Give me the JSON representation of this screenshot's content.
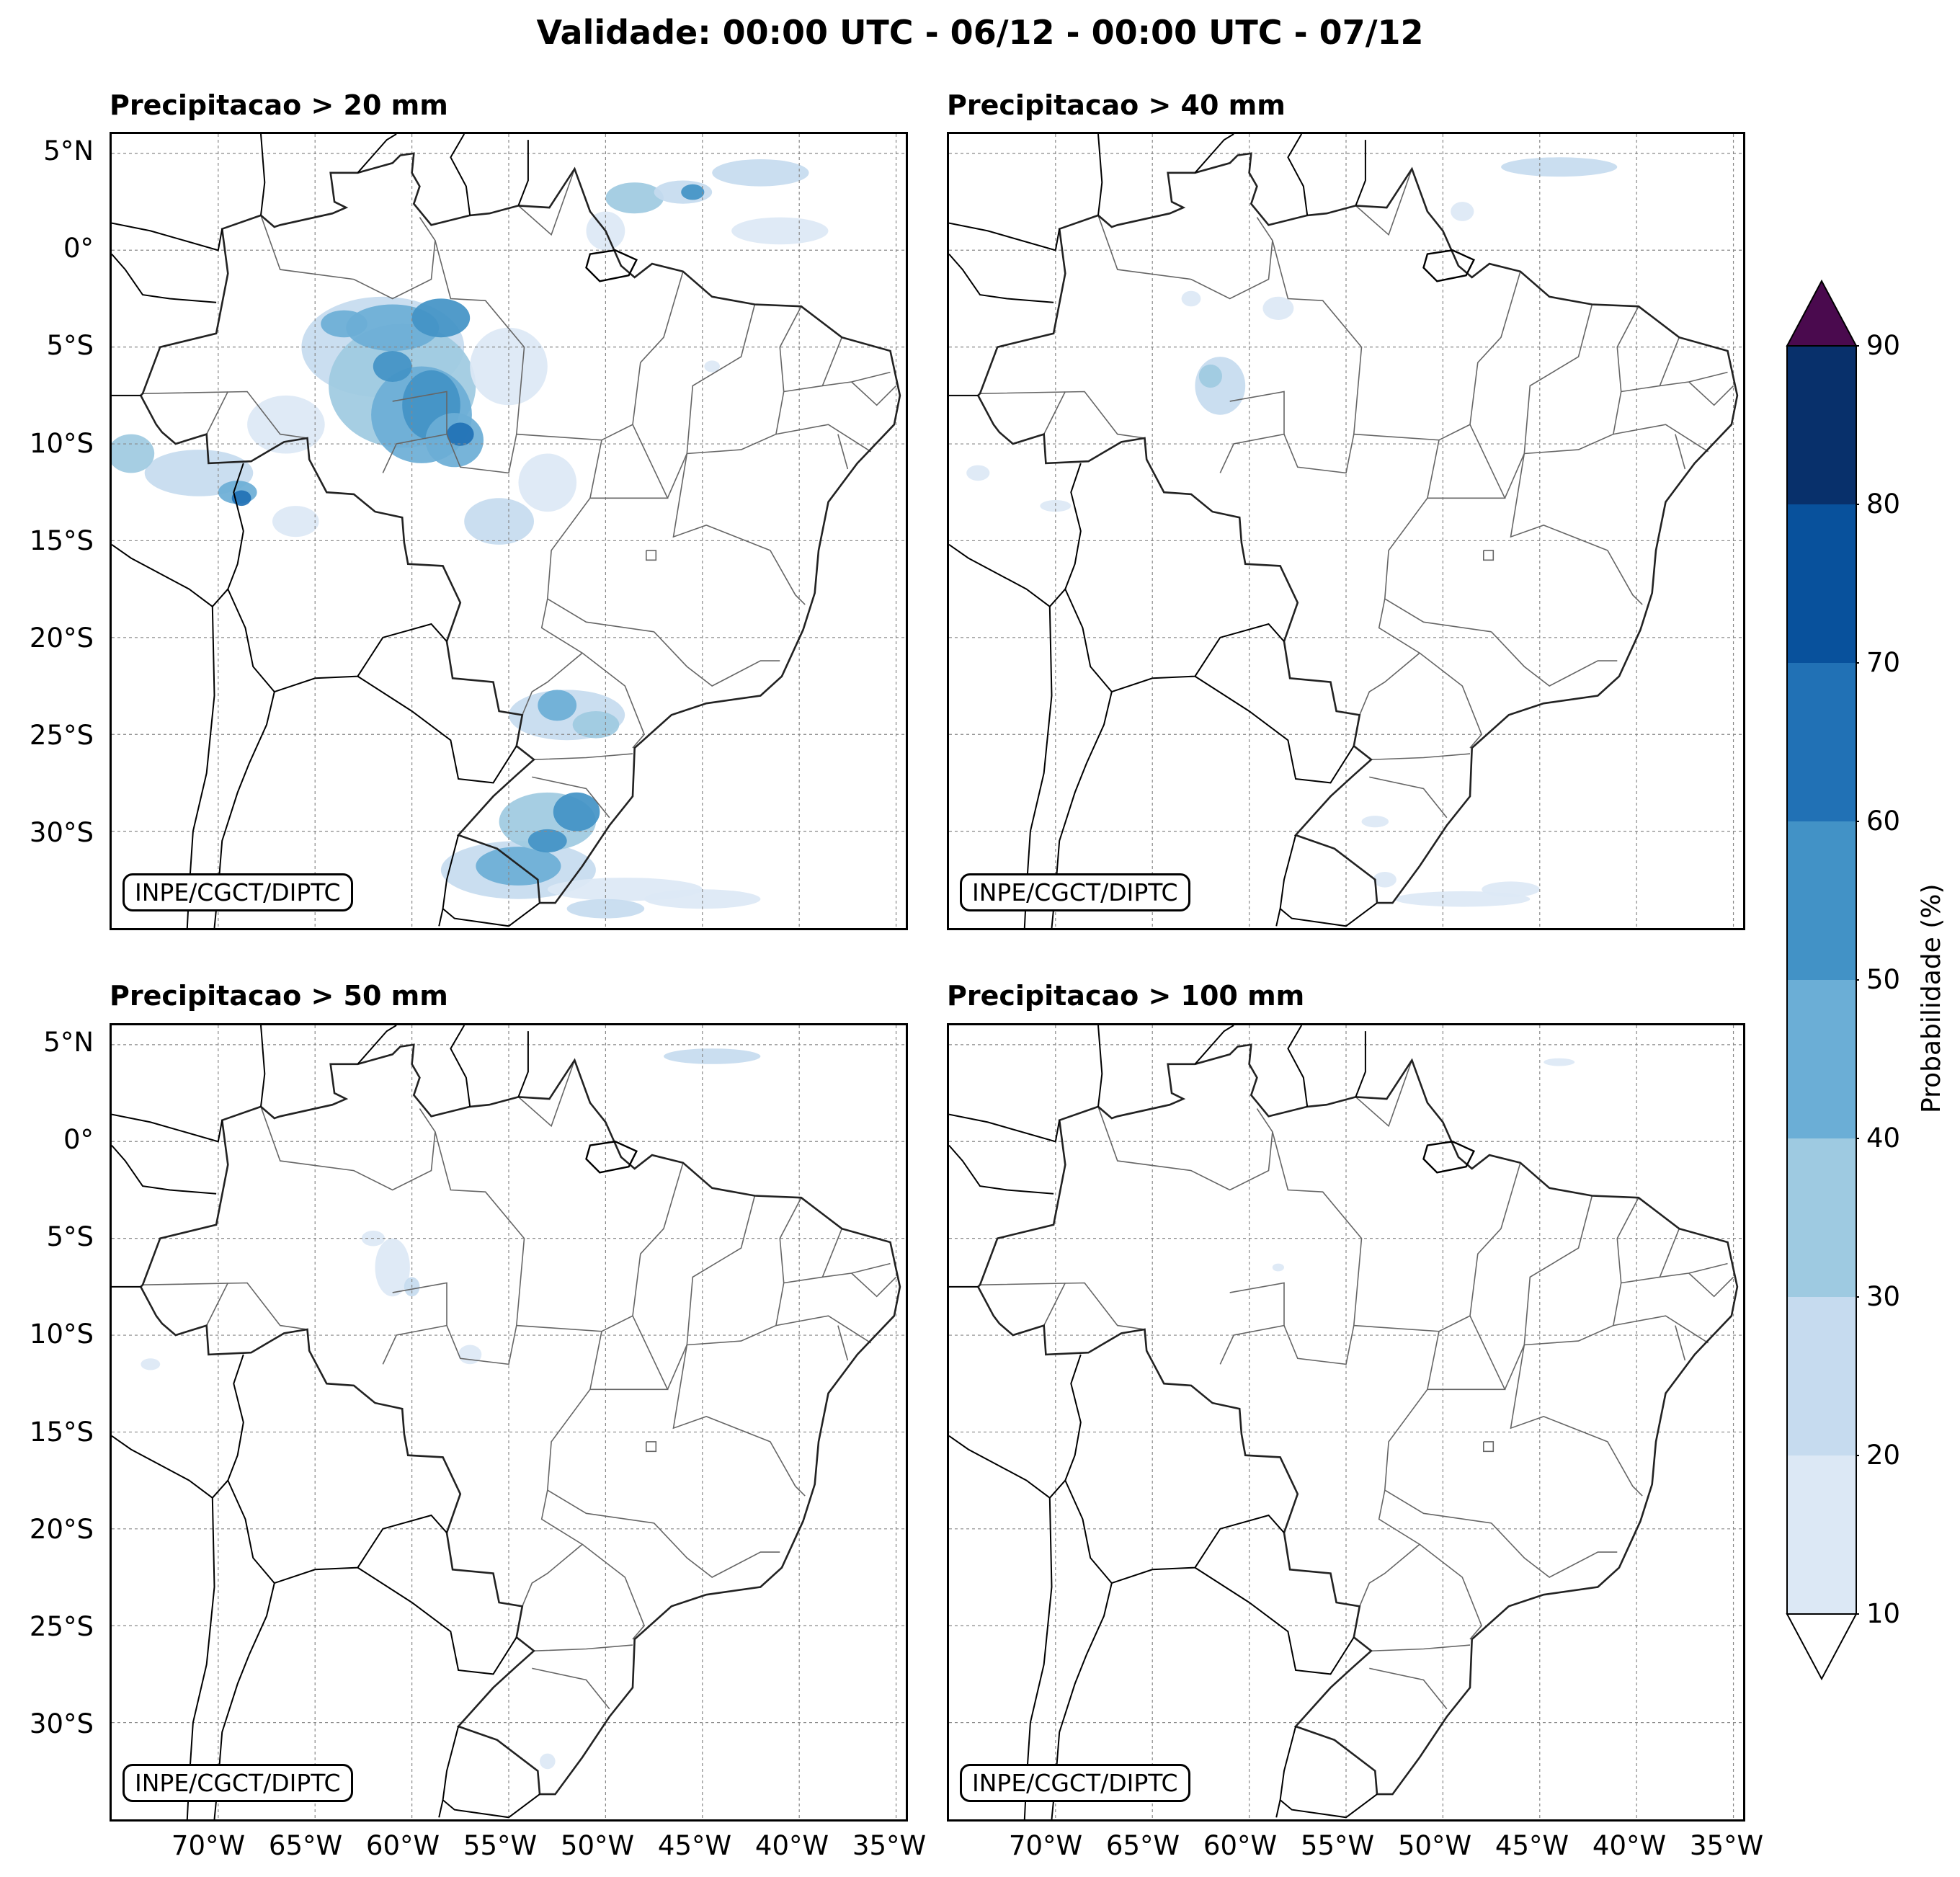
{
  "title": "Validade: 00:00 UTC - 06/12 - 00:00 UTC - 07/12",
  "credit": "INPE/CGCT/DIPTC",
  "panels": [
    {
      "id": "p20",
      "title": "Precipitacao > 20 mm"
    },
    {
      "id": "p40",
      "title": "Precipitacao > 40 mm"
    },
    {
      "id": "p50",
      "title": "Precipitacao > 50 mm"
    },
    {
      "id": "p100",
      "title": "Precipitacao > 100 mm"
    }
  ],
  "lat_labels": [
    "5°N",
    "0°",
    "5°S",
    "10°S",
    "15°S",
    "20°S",
    "25°S",
    "30°S"
  ],
  "lon_labels": [
    "70°W",
    "65°W",
    "60°W",
    "55°W",
    "50°W",
    "45°W",
    "40°W",
    "35°W"
  ],
  "colorbar": {
    "label": "Probabilidade (%)",
    "ticks": [
      "10",
      "20",
      "30",
      "40",
      "50",
      "60",
      "70",
      "80",
      "90"
    ],
    "colors": [
      "#dce8f5",
      "#c6dbef",
      "#9ecae1",
      "#6baed6",
      "#4292c6",
      "#2171b5",
      "#08519c",
      "#08306b"
    ],
    "over_color": "#4a0a4e"
  }
}
